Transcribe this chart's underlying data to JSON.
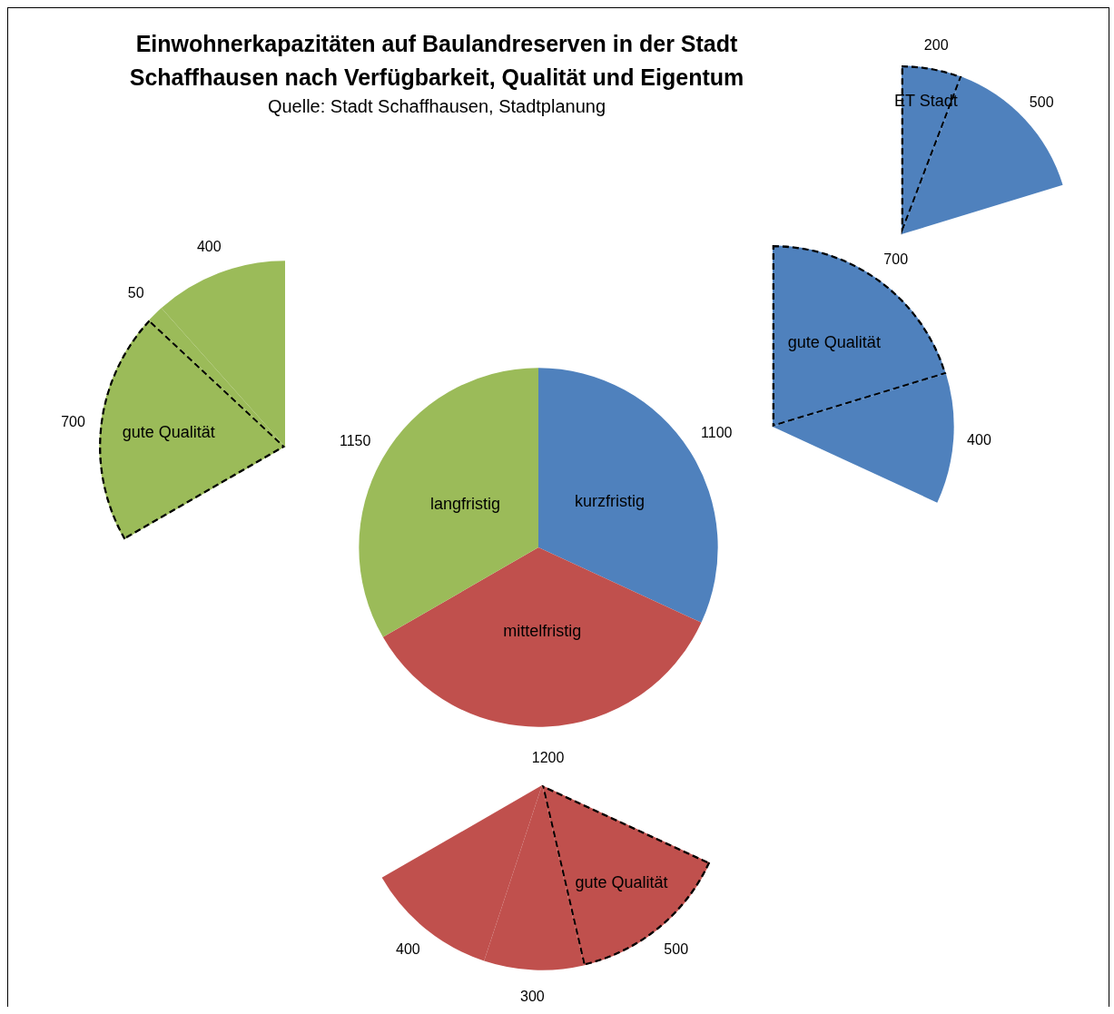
{
  "chart_data": [
    {
      "type": "pie",
      "title": "Einwohnerkapazitäten auf Baulandreserven in der Stadt Schaffhausen nach Verfügbarkeit, Qualität und Eigentum",
      "subtitle": "Quelle: Stadt Schaffhausen, Stadtplanung",
      "categories": [
        "kurzfristig",
        "mittelfristig",
        "langfristig"
      ],
      "values": [
        1100,
        1200,
        1150
      ],
      "colors": [
        "#4f81bd",
        "#c0504d",
        "#9bbb59"
      ],
      "data_labels": true,
      "legend": false
    },
    {
      "type": "pie",
      "categories": [
        "gute Qualität",
        null
      ],
      "values": [
        700,
        400
      ],
      "colors": [
        "#4f81bd",
        "#4f81bd"
      ],
      "data_labels": true,
      "legend": false
    },
    {
      "type": "pie",
      "categories": [
        "gute Qualität",
        null,
        null
      ],
      "values": [
        500,
        300,
        400
      ],
      "colors": [
        "#c0504d",
        "#c0504d",
        "#c0504d"
      ],
      "data_labels": true,
      "legend": false
    },
    {
      "type": "pie",
      "categories": [
        "gute Qualität",
        null,
        null
      ],
      "values": [
        700,
        50,
        400
      ],
      "colors": [
        "#9bbb59",
        "#9bbb59",
        "#9bbb59"
      ],
      "data_labels": true,
      "legend": false
    },
    {
      "type": "pie",
      "categories": [
        "ET Stadt",
        null
      ],
      "values": [
        200,
        500
      ],
      "colors": [
        "#4f81bd",
        "#4f81bd"
      ],
      "data_labels": true,
      "legend": false
    }
  ]
}
